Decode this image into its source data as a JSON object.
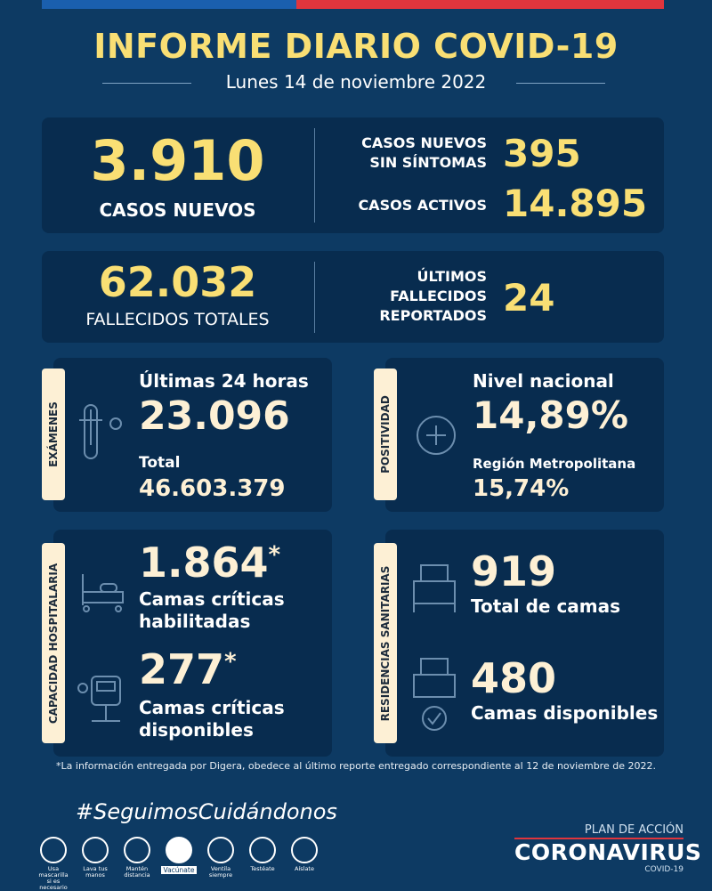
{
  "header": {
    "title": "INFORME DIARIO COVID-19",
    "date": "Lunes 14 de noviembre 2022"
  },
  "cases": {
    "new_value": "3.910",
    "new_label": "CASOS NUEVOS",
    "asymptomatic_label_1": "CASOS NUEVOS",
    "asymptomatic_label_2": "SIN SÍNTOMAS",
    "asymptomatic_value": "395",
    "active_label": "CASOS ACTIVOS",
    "active_value": "14.895"
  },
  "deaths": {
    "total_value": "62.032",
    "total_label": "FALLECIDOS TOTALES",
    "recent_label_1": "ÚLTIMOS",
    "recent_label_2": "FALLECIDOS",
    "recent_label_3": "REPORTADOS",
    "recent_value": "24"
  },
  "exams": {
    "tab": "EXÁMENES",
    "last24_label": "Últimas 24 horas",
    "last24_value": "23.096",
    "total_label": "Total",
    "total_value": "46.603.379"
  },
  "positivity": {
    "tab": "POSITIVIDAD",
    "national_label": "Nivel nacional",
    "national_value": "14,89%",
    "rm_label": "Región Metropolitana",
    "rm_value": "15,74%"
  },
  "hospital": {
    "tab": "CAPACIDAD HOSPITALARIA",
    "enabled_value": "1.864",
    "enabled_mark": "*",
    "enabled_label_1": "Camas críticas",
    "enabled_label_2": "habilitadas",
    "available_value": "277",
    "available_mark": "*",
    "available_label_1": "Camas críticas",
    "available_label_2": "disponibles"
  },
  "residences": {
    "tab": "RESIDENCIAS SANITARIAS",
    "total_value": "919",
    "total_label": "Total de camas",
    "available_value": "480",
    "available_label": "Camas disponibles"
  },
  "footnote": "*La información entregada por Digera, obedece al último reporte entregado correspondiente al 12 de noviembre de 2022.",
  "campaign": {
    "hashtag": "#SeguimosCuidándonos",
    "items": [
      {
        "l1": "Usa mascarilla",
        "l2": "si es necesario"
      },
      {
        "l1": "Lava tus",
        "l2": "manos"
      },
      {
        "l1": "Mantén",
        "l2": "distancia"
      },
      {
        "l1": "Vacúnate",
        "l2": ""
      },
      {
        "l1": "Ventila",
        "l2": "siempre"
      },
      {
        "l1": "Testéate",
        "l2": ""
      },
      {
        "l1": "Aíslate",
        "l2": ""
      }
    ]
  },
  "logo": {
    "line1": "PLAN DE ACCIÓN",
    "line2": "CORONAVIRUS",
    "line3": "COVID-19"
  },
  "colors": {
    "background": "#0d3a63",
    "card": "#082c4f",
    "accent_yellow": "#f9df74",
    "cream": "#fdf0d5",
    "flag_blue": "#1a5fae",
    "flag_red": "#e0353d"
  }
}
